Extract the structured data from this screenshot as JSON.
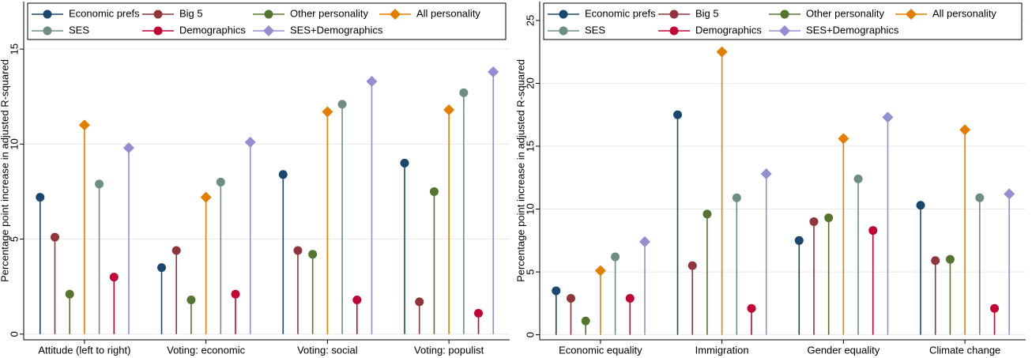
{
  "chart_data": [
    {
      "type": "lollipop",
      "ylabel": "Percentage point increase in adjusted R-squared",
      "categories": [
        "Attitude (left to right)",
        "Voting: economic",
        "Voting: social",
        "Voting: populist"
      ],
      "ylim": [
        -0.3,
        17.5
      ],
      "yticks": [
        0,
        5,
        10,
        15
      ],
      "grid": true,
      "legend": "top",
      "series": [
        {
          "name": "Economic prefs",
          "color": "#1a476f",
          "marker": "circle",
          "values": [
            7.2,
            3.5,
            8.4,
            9.0
          ]
        },
        {
          "name": "Big 5",
          "color": "#90353b",
          "marker": "circle",
          "values": [
            5.1,
            4.4,
            4.4,
            1.7
          ]
        },
        {
          "name": "Other personality",
          "color": "#55752f",
          "marker": "circle",
          "values": [
            2.1,
            1.8,
            4.2,
            7.5
          ]
        },
        {
          "name": "All personality",
          "color": "#e37e00",
          "marker": "diamond",
          "values": [
            11.0,
            7.2,
            11.7,
            11.8
          ]
        },
        {
          "name": "SES",
          "color": "#6e8e84",
          "marker": "circle",
          "values": [
            7.9,
            8.0,
            12.1,
            12.7
          ]
        },
        {
          "name": "Demographics",
          "color": "#c10534",
          "marker": "circle",
          "values": [
            3.0,
            2.1,
            1.8,
            1.1
          ]
        },
        {
          "name": "SES+Demographics",
          "color": "#938dd2",
          "marker": "diamond",
          "values": [
            9.8,
            10.1,
            13.3,
            13.8
          ]
        }
      ]
    },
    {
      "type": "lollipop",
      "ylabel": "Percentage point increase in adjusted R-squared",
      "categories": [
        "Economic equality",
        "Immigration",
        "Gender equality",
        "Climate change"
      ],
      "ylim": [
        -0.4,
        26.5
      ],
      "yticks": [
        0,
        5,
        10,
        15,
        20,
        25
      ],
      "grid": true,
      "legend": "top",
      "series": [
        {
          "name": "Economic prefs",
          "color": "#1a476f",
          "marker": "circle",
          "values": [
            3.5,
            17.5,
            7.5,
            10.3
          ]
        },
        {
          "name": "Big 5",
          "color": "#90353b",
          "marker": "circle",
          "values": [
            2.9,
            5.5,
            9.0,
            5.9
          ]
        },
        {
          "name": "Other personality",
          "color": "#55752f",
          "marker": "circle",
          "values": [
            1.1,
            9.6,
            9.3,
            6.0
          ]
        },
        {
          "name": "All personality",
          "color": "#e37e00",
          "marker": "diamond",
          "values": [
            5.1,
            22.5,
            15.6,
            16.3
          ]
        },
        {
          "name": "SES",
          "color": "#6e8e84",
          "marker": "circle",
          "values": [
            6.2,
            10.9,
            12.4,
            10.9
          ]
        },
        {
          "name": "Demographics",
          "color": "#c10534",
          "marker": "circle",
          "values": [
            2.9,
            2.1,
            8.3,
            2.1
          ]
        },
        {
          "name": "SES+Demographics",
          "color": "#938dd2",
          "marker": "diamond",
          "values": [
            7.4,
            12.8,
            17.3,
            11.2
          ]
        }
      ]
    }
  ]
}
